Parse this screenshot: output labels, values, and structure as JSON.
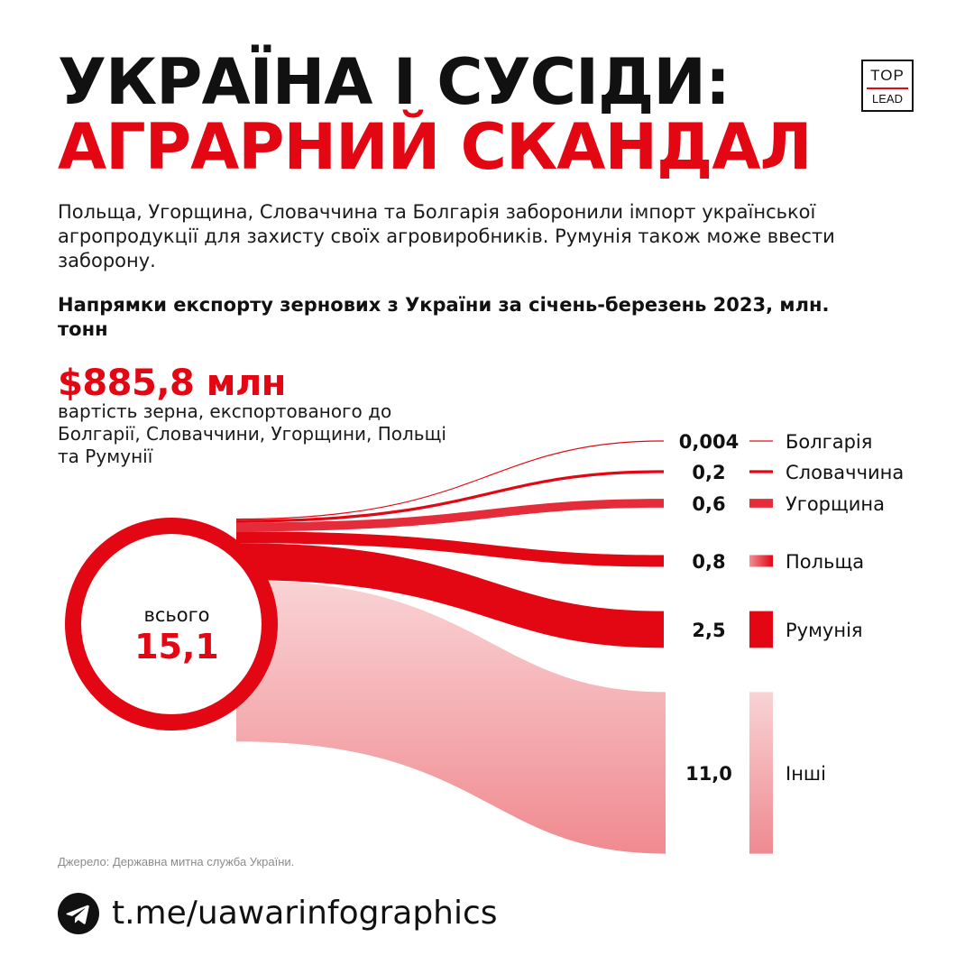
{
  "header": {
    "title_line1": "УКРАЇНА І СУСІДИ:",
    "title_line2": "АГРАРНИЙ СКАНДАЛ",
    "logo_top": "TOP",
    "logo_bottom": "LEAD"
  },
  "intro": "Польща, Угорщина, Словаччина та Болгарія заборонили імпорт української агропродукції для захисту своїх агровиробників. Румунія також може ввести заборону.",
  "chart_data": {
    "type": "sankey",
    "title": "Напрямки експорту зернових з України за січень-березень 2023, млн. тонн",
    "source_label": "всього",
    "total": 15.1,
    "total_label": "15,1",
    "flows": [
      {
        "name": "Болгарія",
        "value": 0.004,
        "label": "0,004",
        "color": "#e30613"
      },
      {
        "name": "Словаччина",
        "value": 0.2,
        "label": "0,2",
        "color": "#e30613"
      },
      {
        "name": "Угорщина",
        "value": 0.6,
        "label": "0,6",
        "color": "#e52c3a"
      },
      {
        "name": "Польща",
        "value": 0.8,
        "label": "0,8",
        "color": "#e30613"
      },
      {
        "name": "Румунія",
        "value": 2.5,
        "label": "2,5",
        "color": "#e30613"
      },
      {
        "name": "Інші",
        "value": 11.0,
        "label": "11,0",
        "color": "#f08a90"
      }
    ]
  },
  "highlight": {
    "value": "$885,8 млн",
    "description": "вартість зерна, експортованого до Болгарії, Словаччини, Угорщини, Польщі та Румунії"
  },
  "source": "Джерело: Державна митна служба України.",
  "footer": {
    "icon": "telegram-icon",
    "link": "t.me/uawarinfographics"
  },
  "colors": {
    "accent": "#e30613",
    "accent_light": "#f7c6c9",
    "text": "#111111"
  }
}
